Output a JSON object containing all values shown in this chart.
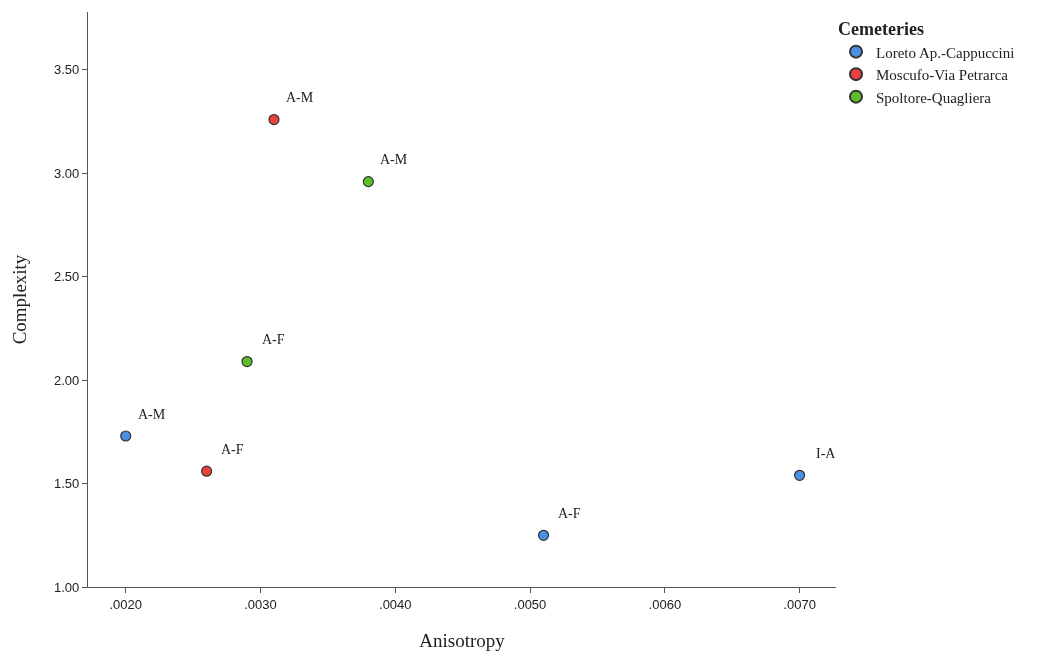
{
  "chart_data": {
    "type": "scatter",
    "xlabel": "Anisotropy",
    "ylabel": "Complexity",
    "legend_title": "Cemeteries",
    "series": [
      {
        "name": "Loreto Ap.-Cappuccini",
        "color": "#4a90e2",
        "x": [
          0.002,
          0.0051,
          0.007
        ],
        "values": [
          1.73,
          1.25,
          1.54
        ]
      },
      {
        "name": "Moscufo-Via Petrarca",
        "color": "#e8413f",
        "x": [
          0.0031,
          0.0026
        ],
        "values": [
          3.26,
          1.56
        ]
      },
      {
        "name": "Spoltore-Quagliera",
        "color": "#5cbf2a",
        "x": [
          0.0038,
          0.0029
        ],
        "values": [
          2.96,
          2.09
        ]
      }
    ],
    "annotations": [
      {
        "text": "A-M",
        "x": 0.002,
        "y": 1.73
      },
      {
        "text": "A-F",
        "x": 0.0051,
        "y": 1.25
      },
      {
        "text": "I-A",
        "x": 0.007,
        "y": 1.54
      },
      {
        "text": "A-M",
        "x": 0.0031,
        "y": 3.26
      },
      {
        "text": "A-F",
        "x": 0.0026,
        "y": 1.56
      },
      {
        "text": "A-M",
        "x": 0.0038,
        "y": 2.96
      },
      {
        "text": "A-F",
        "x": 0.0029,
        "y": 2.09
      }
    ],
    "xlim": [
      0.00172,
      0.00727
    ],
    "xticks": [
      {
        "value": 0.002,
        "label": ".0020"
      },
      {
        "value": 0.003,
        "label": ".0030"
      },
      {
        "value": 0.004,
        "label": ".0040"
      },
      {
        "value": 0.005,
        "label": ".0050"
      },
      {
        "value": 0.006,
        "label": ".0060"
      },
      {
        "value": 0.007,
        "label": ".0070"
      }
    ],
    "ylim": [
      1.0,
      3.78
    ],
    "yticks": [
      {
        "value": 1.0,
        "label": "1.00"
      },
      {
        "value": 1.5,
        "label": "1.50"
      },
      {
        "value": 2.0,
        "label": "2.00"
      },
      {
        "value": 2.5,
        "label": "2.50"
      },
      {
        "value": 3.0,
        "label": "3.00"
      },
      {
        "value": 3.5,
        "label": "3.50"
      }
    ],
    "legend": "top right",
    "marker": "circle"
  }
}
